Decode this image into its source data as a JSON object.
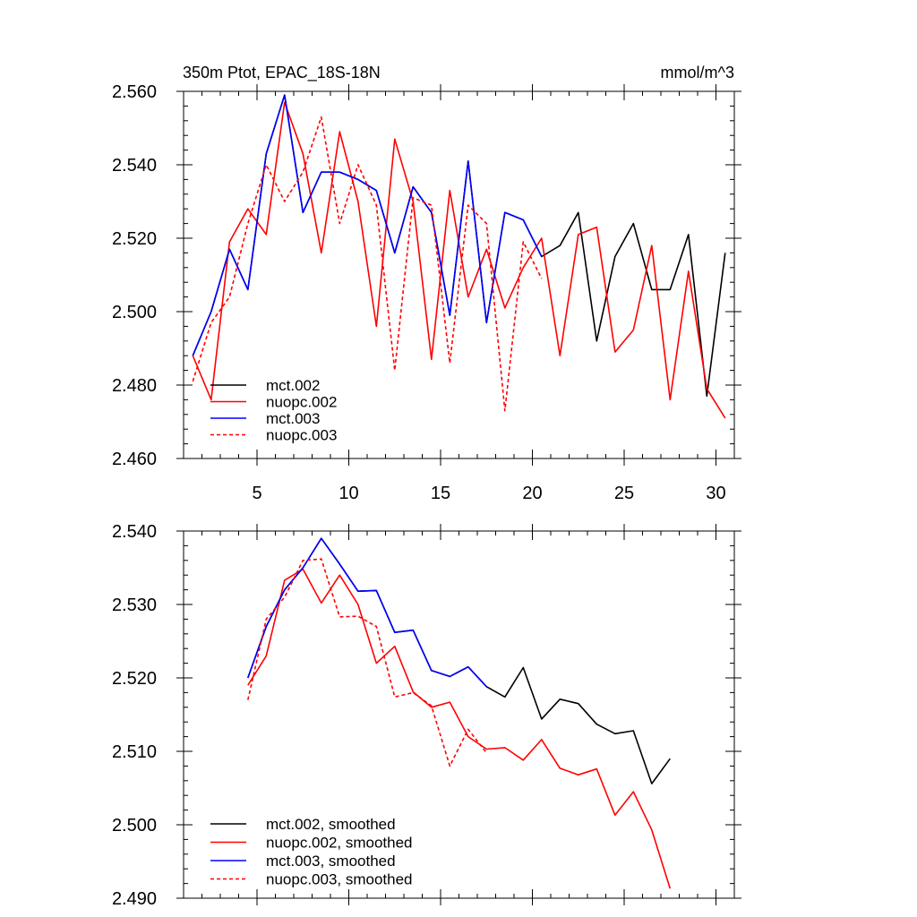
{
  "chart_data": [
    {
      "type": "line",
      "title_left": "350m Ptot, EPAC_18S-18N",
      "title_right": "mmol/m^3",
      "xlim": [
        1,
        31
      ],
      "ylim": [
        2.46,
        2.56
      ],
      "xticks": [
        5,
        10,
        15,
        20,
        25,
        30
      ],
      "xtick_labels": [
        "5",
        "10",
        "15",
        "20",
        "25",
        "30"
      ],
      "yticks": [
        2.46,
        2.48,
        2.5,
        2.52,
        2.54,
        2.56
      ],
      "ytick_labels": [
        "2.460",
        "2.480",
        "2.500",
        "2.520",
        "2.540",
        "2.560"
      ],
      "series": [
        {
          "name": "mct.002",
          "color": "#000000",
          "dash": "solid",
          "x": [
            1.5,
            2.5,
            3.5,
            4.5,
            5.5,
            6.5,
            7.5,
            8.5,
            9.5,
            10.5,
            11.5,
            12.5,
            13.5,
            14.5,
            15.5,
            16.5,
            17.5,
            18.5,
            19.5,
            20.5,
            21.5,
            22.5,
            23.5,
            24.5,
            25.5,
            26.5,
            27.5,
            28.5,
            29.5,
            30.5
          ],
          "values": [
            2.488,
            2.5,
            2.517,
            2.506,
            2.543,
            2.559,
            2.527,
            2.538,
            2.538,
            2.536,
            2.533,
            2.516,
            2.534,
            2.527,
            2.499,
            2.541,
            2.497,
            2.527,
            2.525,
            2.515,
            2.518,
            2.527,
            2.492,
            2.515,
            2.524,
            2.506,
            2.506,
            2.521,
            2.477,
            2.516
          ]
        },
        {
          "name": "nuopc.002",
          "color": "#ff0000",
          "dash": "solid",
          "x": [
            1.5,
            2.5,
            3.5,
            4.5,
            5.5,
            6.5,
            7.5,
            8.5,
            9.5,
            10.5,
            11.5,
            12.5,
            13.5,
            14.5,
            15.5,
            16.5,
            17.5,
            18.5,
            19.5,
            20.5,
            21.5,
            22.5,
            23.5,
            24.5,
            25.5,
            26.5,
            27.5,
            28.5,
            29.5,
            30.5
          ],
          "values": [
            2.488,
            2.476,
            2.519,
            2.528,
            2.521,
            2.557,
            2.543,
            2.516,
            2.549,
            2.53,
            2.496,
            2.547,
            2.53,
            2.487,
            2.533,
            2.504,
            2.517,
            2.501,
            2.512,
            2.52,
            2.488,
            2.521,
            2.523,
            2.489,
            2.495,
            2.518,
            2.476,
            2.511,
            2.479,
            2.471
          ]
        },
        {
          "name": "mct.003",
          "color": "#0000ff",
          "dash": "solid",
          "x": [
            1.5,
            2.5,
            3.5,
            4.5,
            5.5,
            6.5,
            7.5,
            8.5,
            9.5,
            10.5,
            11.5,
            12.5,
            13.5,
            14.5,
            15.5,
            16.5,
            17.5,
            18.5,
            19.5,
            20.5
          ],
          "values": [
            2.488,
            2.5,
            2.517,
            2.506,
            2.543,
            2.559,
            2.527,
            2.538,
            2.538,
            2.536,
            2.533,
            2.516,
            2.534,
            2.527,
            2.499,
            2.541,
            2.497,
            2.527,
            2.525,
            2.515
          ]
        },
        {
          "name": "nuopc.003",
          "color": "#ff0000",
          "dash": "dashed",
          "x": [
            1.5,
            2.5,
            3.5,
            4.5,
            5.5,
            6.5,
            7.5,
            8.5,
            9.5,
            10.5,
            11.5,
            12.5,
            13.5,
            14.5,
            15.5,
            16.5,
            17.5,
            18.5,
            19.5,
            20.5
          ],
          "values": [
            2.481,
            2.497,
            2.504,
            2.524,
            2.54,
            2.53,
            2.538,
            2.553,
            2.524,
            2.54,
            2.529,
            2.484,
            2.531,
            2.529,
            2.486,
            2.529,
            2.524,
            2.473,
            2.519,
            2.509
          ]
        }
      ]
    },
    {
      "type": "line",
      "xlim": [
        1,
        31
      ],
      "ylim": [
        2.49,
        2.54
      ],
      "xticks": [
        5,
        10,
        15,
        20,
        25,
        30
      ],
      "yticks": [
        2.49,
        2.5,
        2.51,
        2.52,
        2.53,
        2.54
      ],
      "ytick_labels": [
        "2.490",
        "2.500",
        "2.510",
        "2.520",
        "2.530",
        "2.540"
      ],
      "series": [
        {
          "name": "mct.002, smoothed",
          "color": "#000000",
          "dash": "solid",
          "x": [
            4.5,
            5.5,
            6.5,
            7.5,
            8.5,
            9.5,
            10.5,
            11.5,
            12.5,
            13.5,
            14.5,
            15.5,
            16.5,
            17.5,
            18.5,
            19.5,
            20.5,
            21.5,
            22.5,
            23.5,
            24.5,
            25.5,
            26.5,
            27.5
          ],
          "values": [
            2.52,
            2.527,
            2.532,
            2.535,
            2.539,
            2.5355,
            2.5318,
            2.5319,
            2.5262,
            2.5265,
            2.521,
            2.5202,
            2.5215,
            2.5188,
            2.5174,
            2.5214,
            2.5144,
            2.5171,
            2.5165,
            2.5137,
            2.5124,
            2.5128,
            2.5056,
            2.509
          ]
        },
        {
          "name": "nuopc.002, smoothed",
          "color": "#ff0000",
          "dash": "solid",
          "x": [
            4.5,
            5.5,
            6.5,
            7.5,
            8.5,
            9.5,
            10.5,
            11.5,
            12.5,
            13.5,
            14.5,
            15.5,
            16.5,
            17.5,
            18.5,
            19.5,
            20.5,
            21.5,
            22.5,
            23.5,
            24.5,
            25.5,
            26.5,
            27.5
          ],
          "values": [
            2.519,
            2.523,
            2.5333,
            2.5348,
            2.5302,
            2.534,
            2.53,
            2.522,
            2.5243,
            2.5181,
            2.516,
            2.5167,
            2.512,
            2.5103,
            2.5105,
            2.5088,
            2.5116,
            2.5077,
            2.5068,
            2.5076,
            2.5013,
            2.5045,
            2.4993,
            2.4913
          ]
        },
        {
          "name": "mct.003, smoothed",
          "color": "#0000ff",
          "dash": "solid",
          "x": [
            4.5,
            5.5,
            6.5,
            7.5,
            8.5,
            9.5,
            10.5,
            11.5,
            12.5,
            13.5,
            14.5,
            15.5,
            16.5,
            17.5
          ],
          "values": [
            2.52,
            2.527,
            2.532,
            2.535,
            2.539,
            2.5355,
            2.5318,
            2.5319,
            2.5262,
            2.5265,
            2.521,
            2.5202,
            2.5215,
            2.5188
          ]
        },
        {
          "name": "nuopc.003, smoothed",
          "color": "#ff0000",
          "dash": "dashed",
          "x": [
            4.5,
            5.5,
            6.5,
            7.5,
            8.5,
            9.5,
            10.5,
            11.5,
            12.5,
            13.5,
            14.5,
            15.5,
            16.5,
            17.5
          ],
          "values": [
            2.517,
            2.528,
            2.531,
            2.536,
            2.5362,
            2.5283,
            2.5284,
            2.527,
            2.5174,
            2.518,
            2.5162,
            2.508,
            2.513,
            2.5098
          ]
        }
      ]
    }
  ]
}
